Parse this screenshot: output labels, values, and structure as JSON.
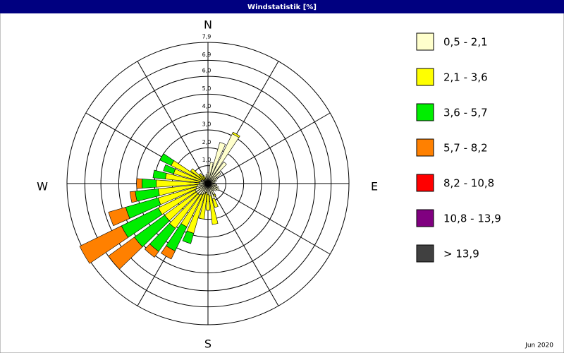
{
  "chart_data": {
    "type": "windrose",
    "title": "Windstatistik [%]",
    "footer": "Jun 2020",
    "direction_labels": [
      "N",
      "E",
      "S",
      "W"
    ],
    "x": [
      0,
      10,
      20,
      30,
      40,
      50,
      60,
      70,
      80,
      90,
      100,
      110,
      120,
      130,
      140,
      150,
      160,
      170,
      180,
      190,
      200,
      210,
      220,
      230,
      240,
      250,
      260,
      270,
      280,
      290,
      300,
      310,
      320,
      330,
      340,
      350
    ],
    "rlim": [
      0,
      7.9
    ],
    "rticks": [
      {
        "value": 1.0,
        "label": "1,0"
      },
      {
        "value": 2.0,
        "label": "2,0"
      },
      {
        "value": 3.0,
        "label": "3,0"
      },
      {
        "value": 4.0,
        "label": "4,0"
      },
      {
        "value": 5.0,
        "label": "5,0"
      },
      {
        "value": 6.0,
        "label": "6,0"
      },
      {
        "value": 6.9,
        "label": "6,9"
      },
      {
        "value": 7.9,
        "label": "7,9"
      }
    ],
    "grid": true,
    "series": [
      {
        "name": "0,5 - 2,1",
        "color": "#ffffcc",
        "values": [
          0.6,
          1.2,
          2.4,
          3.1,
          1.5,
          0.9,
          0.6,
          0.5,
          0.4,
          0.3,
          0.5,
          0.6,
          0.7,
          0.6,
          0.5,
          0.7,
          0.9,
          0.7,
          0.6,
          0.5,
          0.6,
          0.7,
          0.8,
          0.8,
          0.8,
          0.7,
          0.6,
          0.5,
          0.5,
          0.4,
          0.4,
          0.3,
          0.3,
          0.3,
          0.4,
          0.5
        ]
      },
      {
        "name": "2,1 - 3,6",
        "color": "#ffff00",
        "values": [
          0,
          0,
          0,
          0.1,
          0,
          0,
          0,
          0,
          0,
          0,
          0,
          0,
          0,
          0,
          0,
          0.1,
          0.5,
          1.6,
          0.9,
          1.5,
          2.3,
          2.0,
          2.3,
          2.2,
          2.3,
          2.2,
          2.2,
          2.4,
          1.9,
          1.6,
          1.9,
          0.9,
          0.4,
          0.2,
          0,
          0
        ]
      },
      {
        "name": "3,6 - 5,7",
        "color": "#00ee00",
        "values": [
          0,
          0,
          0,
          0,
          0,
          0,
          0,
          0,
          0,
          0,
          0,
          0,
          0,
          0,
          0,
          0,
          0,
          0,
          0,
          0,
          0.6,
          1.5,
          1.6,
          2.1,
          2.3,
          1.9,
          1.3,
          0.8,
          0.7,
          0.6,
          0.7,
          0,
          0,
          0,
          0,
          0
        ]
      },
      {
        "name": "5,7 - 8,2",
        "color": "#ff8000",
        "values": [
          0,
          0,
          0,
          0,
          0,
          0,
          0,
          0,
          0,
          0,
          0,
          0,
          0,
          0,
          0,
          0,
          0,
          0,
          0,
          0,
          0,
          0.5,
          0.4,
          1.8,
          2.6,
          1.0,
          0.3,
          0.3,
          0,
          0,
          0,
          0,
          0,
          0,
          0,
          0
        ]
      },
      {
        "name": "8,2 - 10,8",
        "color": "#ff0000",
        "values": [
          0,
          0,
          0,
          0,
          0,
          0,
          0,
          0,
          0,
          0,
          0,
          0,
          0,
          0,
          0,
          0,
          0,
          0,
          0,
          0,
          0,
          0,
          0,
          0,
          0,
          0,
          0,
          0,
          0,
          0,
          0,
          0,
          0,
          0,
          0,
          0
        ]
      },
      {
        "name": "10,8 - 13,9",
        "color": "#800080",
        "values": [
          0,
          0,
          0,
          0,
          0,
          0,
          0,
          0,
          0,
          0,
          0,
          0,
          0,
          0,
          0,
          0,
          0,
          0,
          0,
          0,
          0,
          0,
          0,
          0,
          0,
          0,
          0,
          0,
          0,
          0,
          0,
          0,
          0,
          0,
          0,
          0
        ]
      },
      {
        "name": "> 13,9",
        "color": "#404040",
        "values": [
          0,
          0,
          0,
          0,
          0,
          0,
          0,
          0,
          0,
          0,
          0,
          0,
          0,
          0,
          0,
          0,
          0,
          0,
          0,
          0,
          0,
          0,
          0,
          0,
          0,
          0,
          0,
          0,
          0,
          0,
          0,
          0,
          0,
          0,
          0,
          0
        ]
      }
    ]
  }
}
